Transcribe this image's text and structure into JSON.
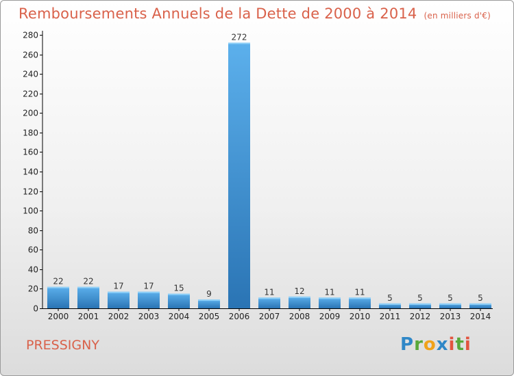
{
  "title": "Remboursements Annuels de la Dette de 2000 à 2014",
  "unit_note": "(en milliers d'€)",
  "place": "PRESSIGNY",
  "logo_text": "Proxiti",
  "colors": {
    "title": "#d9614a",
    "bar_light": "#5aaeea",
    "bar_dark": "#2a76b6",
    "axis": "#000000"
  },
  "chart_data": {
    "type": "bar",
    "title": "Remboursements Annuels de la Dette de 2000 à 2014",
    "xlabel": "",
    "ylabel": "",
    "categories": [
      "2000",
      "2001",
      "2002",
      "2003",
      "2004",
      "2005",
      "2006",
      "2007",
      "2008",
      "2009",
      "2010",
      "2011",
      "2012",
      "2013",
      "2014"
    ],
    "values": [
      22,
      22,
      17,
      17,
      15,
      9,
      272,
      11,
      12,
      11,
      11,
      5,
      5,
      5,
      5
    ],
    "ylim": [
      0,
      280
    ],
    "yticks": [
      0,
      20,
      40,
      60,
      80,
      100,
      120,
      140,
      160,
      180,
      200,
      220,
      240,
      260,
      280
    ],
    "grid": false,
    "legend": "none"
  }
}
